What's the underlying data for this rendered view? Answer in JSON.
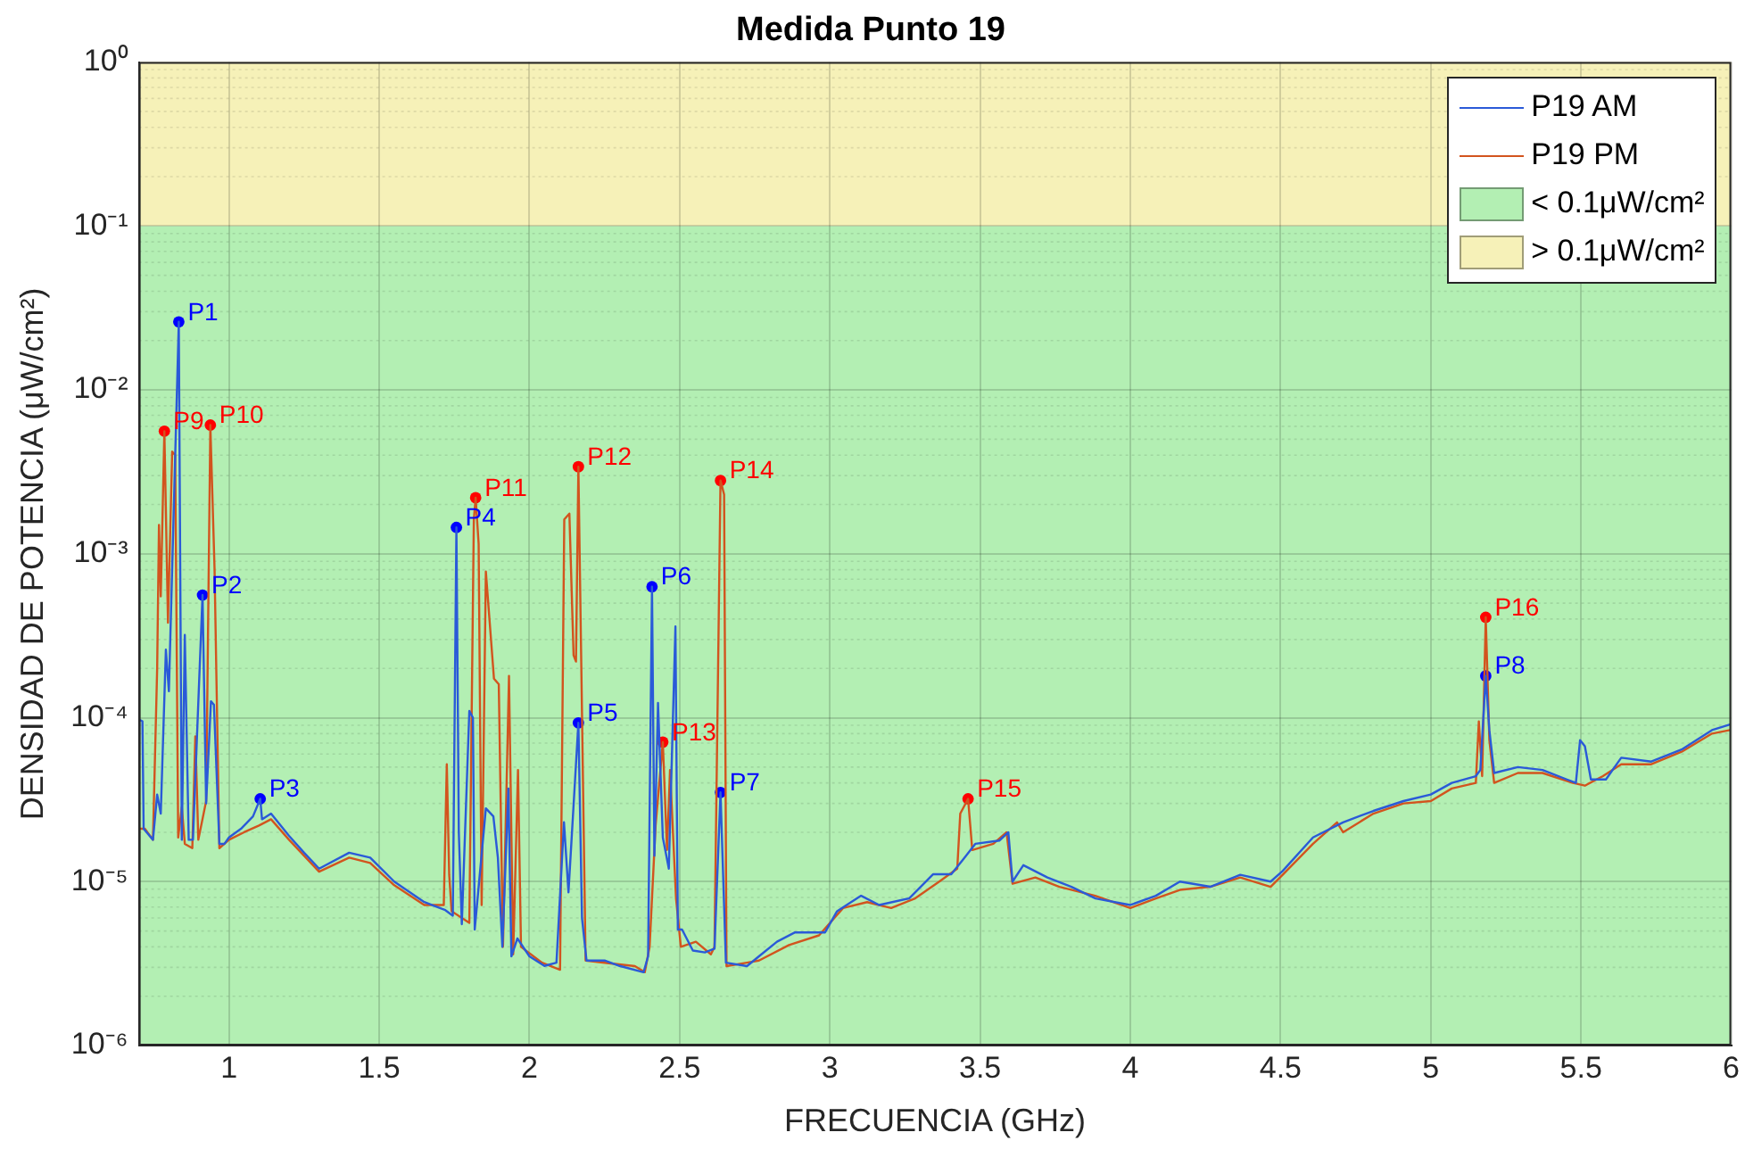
{
  "chart_data": {
    "type": "line",
    "title": "Medida Punto 19",
    "xlabel": "FRECUENCIA (GHz)",
    "ylabel": "DENSIDAD DE POTENCIA (μW/cm²)",
    "log": "y",
    "grid": true,
    "legend": "top right",
    "xlim": [
      0.7,
      6
    ],
    "xticks": [
      1,
      1.5,
      2,
      2.5,
      3,
      3.5,
      4,
      4.5,
      5,
      5.5,
      6
    ],
    "ylim": [
      1e-06,
      1
    ],
    "yticks": [
      {
        "value": 1e-06,
        "label": "10⁻⁶"
      },
      {
        "value": 1e-05,
        "label": "10⁻⁵"
      },
      {
        "value": 0.0001,
        "label": "10⁻⁴"
      },
      {
        "value": 0.001,
        "label": "10⁻³"
      },
      {
        "value": 0.01,
        "label": "10⁻²"
      },
      {
        "value": 0.1,
        "label": "10⁻¹"
      },
      {
        "value": 1,
        "label": "10⁰"
      }
    ],
    "bands": [
      {
        "axis": "y",
        "from": 1e-06,
        "to": 0.1,
        "label": "< 0.1μW/cm²",
        "color": "#b3efb3"
      },
      {
        "axis": "y",
        "from": 0.1,
        "to": 1,
        "label": "> 0.1μW/cm²",
        "color": "#f6f1b8"
      }
    ],
    "series": [
      {
        "name": "P19 AM",
        "color": "#2a5ad8",
        "x": [
          0.703,
          0.712,
          0.716,
          0.747,
          0.761,
          0.773,
          0.79,
          0.8,
          0.833,
          0.843,
          0.853,
          0.866,
          0.88,
          0.912,
          0.924,
          0.94,
          0.95,
          0.968,
          0.985,
          1.0,
          1.04,
          1.08,
          1.104,
          1.11,
          1.14,
          1.2,
          1.25,
          1.3,
          1.4,
          1.47,
          1.55,
          1.65,
          1.72,
          1.745,
          1.757,
          1.765,
          1.775,
          1.8,
          1.812,
          1.818,
          1.855,
          1.88,
          1.895,
          1.91,
          1.93,
          1.94,
          1.96,
          2.0,
          2.05,
          2.09,
          2.115,
          2.13,
          2.163,
          2.175,
          2.19,
          2.25,
          2.3,
          2.38,
          2.395,
          2.408,
          2.416,
          2.428,
          2.444,
          2.464,
          2.486,
          2.494,
          2.508,
          2.544,
          2.584,
          2.616,
          2.636,
          2.654,
          2.724,
          2.764,
          2.824,
          2.884,
          2.944,
          2.984,
          3.024,
          3.104,
          3.164,
          3.264,
          3.344,
          3.404,
          3.444,
          3.484,
          3.564,
          3.594,
          3.608,
          3.644,
          3.724,
          3.804,
          3.884,
          4.0,
          4.085,
          4.165,
          4.266,
          4.366,
          4.467,
          4.507,
          4.608,
          4.708,
          4.809,
          4.909,
          5.0,
          5.07,
          5.15,
          5.165,
          5.183,
          5.195,
          5.211,
          5.29,
          5.372,
          5.453,
          5.483,
          5.497,
          5.513,
          5.533,
          5.583,
          5.634,
          5.734,
          5.835,
          5.936,
          5.996
        ],
        "values": [
          9.7e-05,
          9.5e-05,
          2.1e-05,
          1.8e-05,
          3.4e-05,
          2.6e-05,
          0.00026,
          0.000145,
          0.026,
          1.8e-05,
          0.00032,
          1.8e-05,
          1.8e-05,
          0.00056,
          3e-05,
          0.000126,
          0.00012,
          1.7e-05,
          1.7e-05,
          1.86e-05,
          2.1e-05,
          2.5e-05,
          3.2e-05,
          2.4e-05,
          2.6e-05,
          1.9e-05,
          1.5e-05,
          1.2e-05,
          1.5e-05,
          1.4e-05,
          1e-05,
          7.5e-06,
          6.7e-06,
          6.2e-06,
          0.00145,
          2e-05,
          5.5e-06,
          0.00011,
          0.0001,
          5.1e-06,
          2.8e-05,
          2.5e-05,
          1.4e-05,
          4e-06,
          3.7e-05,
          3.5e-06,
          4.5e-06,
          3.5e-06,
          3.06e-06,
          3.2e-06,
          2.3e-05,
          8.6e-06,
          9.3e-05,
          6e-06,
          3.3e-06,
          3.3e-06,
          3.06e-06,
          2.8e-06,
          3.5e-06,
          0.00063,
          1.44e-05,
          0.000123,
          1.86e-05,
          1.2e-05,
          0.00036,
          5.1e-06,
          5.1e-06,
          3.8e-06,
          3.7e-06,
          3.9e-06,
          3.5e-05,
          3.2e-06,
          3.05e-06,
          3.5e-06,
          4.3e-06,
          4.9e-06,
          4.9e-06,
          4.9e-06,
          6.6e-06,
          8.2e-06,
          7.2e-06,
          7.9e-06,
          1.11e-05,
          1.11e-05,
          1.37e-05,
          1.7e-05,
          1.78e-05,
          2e-05,
          1e-05,
          1.26e-05,
          1.06e-05,
          9.3e-06,
          7.9e-06,
          7.2e-06,
          8.2e-06,
          1e-05,
          9.3e-06,
          1.1e-05,
          1e-05,
          1.16e-05,
          1.86e-05,
          2.3e-05,
          2.7e-05,
          3.1e-05,
          3.4e-05,
          4e-05,
          4.4e-05,
          4.8e-05,
          0.00018,
          8.4e-05,
          4.6e-05,
          5e-05,
          4.8e-05,
          4.2e-05,
          4e-05,
          7.3e-05,
          6.7e-05,
          4.2e-05,
          4.2e-05,
          5.7e-05,
          5.4e-05,
          6.4e-05,
          8.4e-05,
          9.1e-05
        ]
      },
      {
        "name": "P19 PM",
        "color": "#d2541e",
        "x": [
          0.703,
          0.72,
          0.747,
          0.761,
          0.767,
          0.773,
          0.785,
          0.797,
          0.811,
          0.821,
          0.831,
          0.843,
          0.853,
          0.878,
          0.888,
          0.898,
          0.924,
          0.938,
          0.952,
          0.968,
          1.0,
          1.05,
          1.1,
          1.14,
          1.2,
          1.3,
          1.4,
          1.47,
          1.55,
          1.65,
          1.715,
          1.725,
          1.733,
          1.741,
          1.8,
          1.815,
          1.821,
          1.831,
          1.841,
          1.855,
          1.882,
          1.898,
          1.912,
          1.932,
          1.946,
          1.962,
          1.972,
          2.042,
          2.102,
          2.116,
          2.133,
          2.147,
          2.155,
          2.163,
          2.187,
          2.251,
          2.351,
          2.384,
          2.4,
          2.42,
          2.444,
          2.458,
          2.468,
          2.488,
          2.504,
          2.554,
          2.604,
          2.616,
          2.636,
          2.648,
          2.656,
          2.724,
          2.764,
          2.864,
          2.964,
          3.044,
          3.124,
          3.204,
          3.284,
          3.364,
          3.424,
          3.434,
          3.46,
          3.474,
          3.544,
          3.588,
          3.608,
          3.684,
          3.764,
          3.883,
          4.0,
          4.085,
          4.165,
          4.266,
          4.366,
          4.467,
          4.507,
          4.608,
          4.688,
          4.708,
          4.809,
          4.909,
          5.0,
          5.07,
          5.15,
          5.16,
          5.171,
          5.183,
          5.195,
          5.211,
          5.29,
          5.372,
          5.473,
          5.513,
          5.573,
          5.634,
          5.734,
          5.835,
          5.936,
          5.996
        ],
        "values": [
          2.1e-05,
          2.1e-05,
          1.8e-05,
          0.0002,
          0.0015,
          0.00055,
          0.0056,
          0.00038,
          0.0042,
          0.004,
          1.86e-05,
          2.85e-05,
          1.7e-05,
          1.6e-05,
          7.7e-05,
          1.8e-05,
          3.1e-05,
          0.0061,
          0.00081,
          1.6e-05,
          1.8e-05,
          2e-05,
          2.2e-05,
          2.4e-05,
          1.8e-05,
          1.15e-05,
          1.4e-05,
          1.3e-05,
          9.5e-06,
          7.2e-06,
          7.2e-06,
          5.2e-05,
          1.1e-05,
          6.6e-06,
          5.6e-06,
          0.00162,
          0.0022,
          0.00115,
          7.2e-06,
          0.00078,
          0.000173,
          0.00016,
          4e-06,
          0.00018,
          3.6e-06,
          4.8e-05,
          4e-06,
          3.2e-06,
          2.9e-06,
          0.00162,
          0.00176,
          0.00024,
          0.00022,
          0.0034,
          3.3e-06,
          3.2e-06,
          3.05e-06,
          2.8e-06,
          4e-06,
          2.2e-05,
          7.1e-05,
          1.56e-05,
          4.8e-05,
          7.9e-06,
          4e-06,
          4.3e-06,
          3.6e-06,
          4e-06,
          0.0028,
          0.0023,
          3.05e-06,
          3.2e-06,
          3.3e-06,
          4.1e-06,
          4.7e-06,
          6.9e-06,
          7.5e-06,
          6.9e-06,
          7.9e-06,
          1e-05,
          1.2e-05,
          2.6e-05,
          3.2e-05,
          1.56e-05,
          1.7e-05,
          2e-05,
          9.7e-06,
          1.06e-05,
          9.3e-06,
          8.2e-06,
          6.9e-06,
          7.9e-06,
          8.9e-06,
          9.3e-06,
          1.06e-05,
          9.3e-06,
          1.1e-05,
          1.7e-05,
          2.3e-05,
          2e-05,
          2.6e-05,
          3e-05,
          3.1e-05,
          3.7e-05,
          4e-05,
          9.5e-05,
          4.4e-05,
          0.00041,
          7.3e-05,
          4e-05,
          4.6e-05,
          4.6e-05,
          4e-05,
          3.85e-05,
          4.4e-05,
          5.2e-05,
          5.2e-05,
          6.2e-05,
          8e-05,
          8.4e-05
        ]
      },
      {
        "type": "scatter",
        "color": "#0000ff",
        "x": [
          0.833,
          0.912,
          1.104,
          1.757,
          2.163,
          2.408,
          2.636,
          5.183
        ],
        "values": [
          0.026,
          0.00056,
          3.2e-05,
          0.00145,
          9.3e-05,
          0.00063,
          3.5e-05,
          0.00018
        ],
        "value_labels": [
          "P1",
          "P2",
          "P3",
          "P4",
          "P5",
          "P6",
          "P7",
          "P8"
        ]
      },
      {
        "type": "scatter",
        "color": "#ff0000",
        "x": [
          0.785,
          0.938,
          1.821,
          2.163,
          2.444,
          2.636,
          3.46,
          5.183
        ],
        "values": [
          0.0056,
          0.0061,
          0.0022,
          0.0034,
          7.1e-05,
          0.0028,
          3.2e-05,
          0.00041
        ],
        "value_labels": [
          "P9",
          "P10",
          "P11",
          "P12",
          "P13",
          "P14",
          "P15",
          "P16"
        ]
      }
    ]
  }
}
